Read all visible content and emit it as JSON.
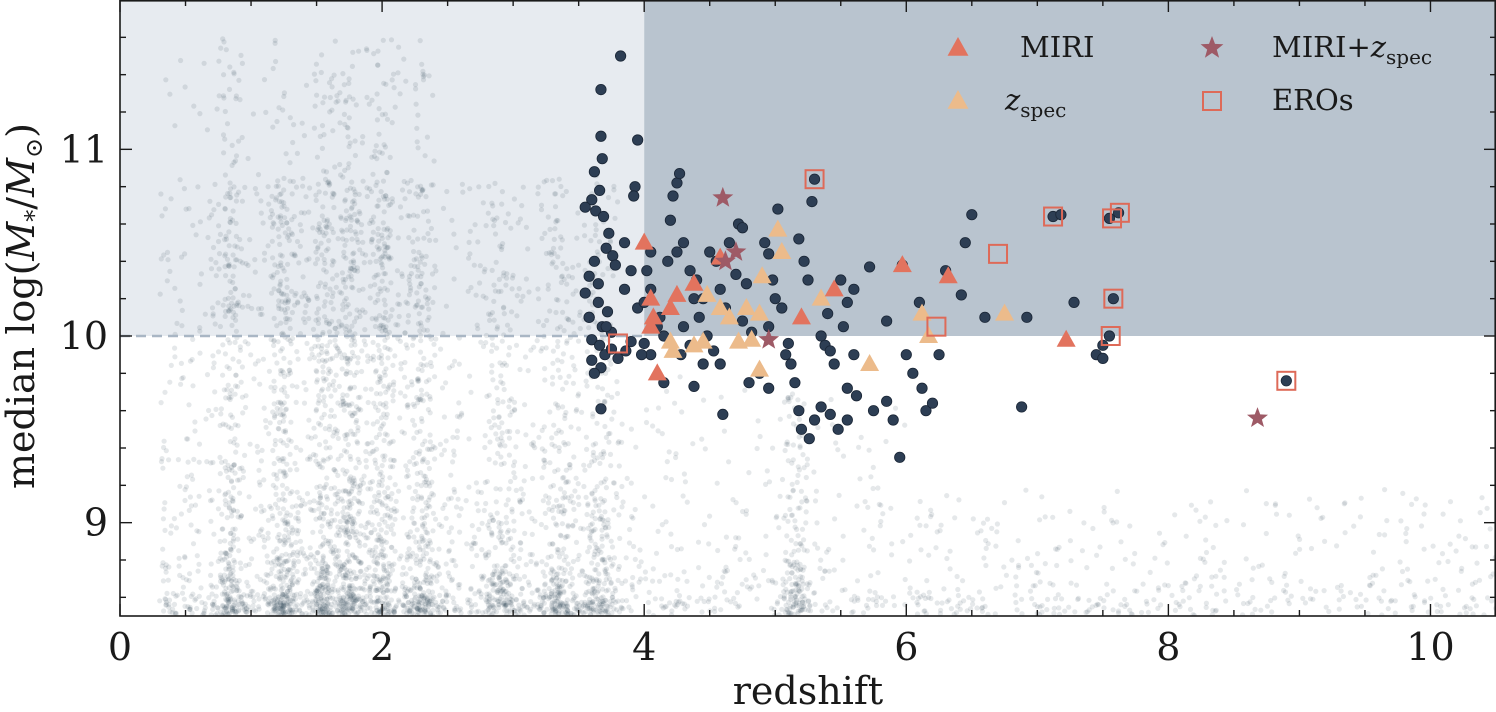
{
  "chart_data": {
    "type": "scatter",
    "xlabel": "redshift",
    "ylabel": {
      "prefix": "median log(",
      "var": "M",
      "sub1": "*",
      "mid": "/",
      "var2": "M",
      "sub2": "⊙",
      "suffix": ")"
    },
    "xlim": [
      0,
      10.5
    ],
    "ylim": [
      8.5,
      11.8
    ],
    "xticks": [
      0,
      2,
      4,
      6,
      8,
      10
    ],
    "yticks": [
      9,
      10,
      11
    ],
    "selection": {
      "z_min": 4,
      "logM_min": 10
    },
    "colors": {
      "background": "#1f2d44",
      "selected_region": "#b9c4cf",
      "lowz_region": "#e7ebf0",
      "dashed_line": "#a9b6c4",
      "sample": "#2d3e54",
      "miri": "#e2735e",
      "zspec": "#ecbb8b",
      "miri_zspec": "#9e5a66",
      "eros": "#de6a58"
    },
    "background_bands": [
      {
        "z": 0.85,
        "weight": 0.8
      },
      {
        "z": 1.25,
        "weight": 1.0
      },
      {
        "z": 1.55,
        "weight": 0.9
      },
      {
        "z": 1.75,
        "weight": 1.2
      },
      {
        "z": 2.0,
        "weight": 0.9
      },
      {
        "z": 2.3,
        "weight": 0.8
      },
      {
        "z": 2.9,
        "weight": 0.5
      },
      {
        "z": 3.35,
        "weight": 0.6
      },
      {
        "z": 3.65,
        "weight": 0.5
      },
      {
        "z": 5.15,
        "weight": 0.5
      }
    ],
    "legend": [
      {
        "key": "miri",
        "label": "MIRI"
      },
      {
        "key": "miri_zspec",
        "label": "MIRI+",
        "math": "z",
        "sub": "spec"
      },
      {
        "key": "zspec",
        "label": "",
        "math": "z",
        "sub": "spec"
      },
      {
        "key": "eros",
        "label": "EROs"
      }
    ],
    "series": [
      {
        "name": "sample",
        "marker": "circle",
        "points": [
          [
            3.82,
            11.5
          ],
          [
            3.67,
            11.32
          ],
          [
            3.67,
            11.07
          ],
          [
            3.68,
            10.95
          ],
          [
            3.62,
            10.88
          ],
          [
            3.66,
            10.78
          ],
          [
            3.6,
            10.73
          ],
          [
            3.55,
            10.69
          ],
          [
            3.63,
            10.67
          ],
          [
            3.69,
            10.64
          ],
          [
            3.93,
            10.8
          ],
          [
            3.95,
            11.05
          ],
          [
            3.92,
            10.75
          ],
          [
            3.73,
            10.55
          ],
          [
            3.71,
            10.47
          ],
          [
            3.76,
            10.43
          ],
          [
            3.62,
            10.4
          ],
          [
            3.85,
            10.5
          ],
          [
            3.78,
            10.38
          ],
          [
            3.9,
            10.35
          ],
          [
            3.58,
            10.32
          ],
          [
            3.65,
            10.28
          ],
          [
            3.85,
            10.25
          ],
          [
            3.55,
            10.23
          ],
          [
            3.65,
            10.18
          ],
          [
            3.72,
            10.13
          ],
          [
            3.58,
            10.1
          ],
          [
            3.68,
            10.05
          ],
          [
            3.75,
            10.02
          ],
          [
            3.6,
            9.98
          ],
          [
            3.66,
            9.95
          ],
          [
            3.7,
            9.9
          ],
          [
            3.6,
            9.87
          ],
          [
            3.67,
            9.83
          ],
          [
            3.62,
            9.8
          ],
          [
            3.8,
            9.88
          ],
          [
            3.75,
            9.93
          ],
          [
            3.86,
            9.92
          ],
          [
            3.9,
            9.97
          ],
          [
            3.67,
            9.61
          ],
          [
            3.95,
            10.15
          ],
          [
            4.05,
            10.45
          ],
          [
            4.02,
            10.35
          ],
          [
            4.05,
            10.25
          ],
          [
            4.0,
            10.18
          ],
          [
            4.1,
            10.05
          ],
          [
            4.15,
            10.0
          ],
          [
            4.0,
            9.96
          ],
          [
            4.05,
            9.9
          ],
          [
            4.12,
            10.1
          ],
          [
            4.18,
            10.4
          ],
          [
            4.25,
            10.45
          ],
          [
            4.3,
            10.5
          ],
          [
            4.22,
            10.75
          ],
          [
            4.25,
            10.82
          ],
          [
            4.27,
            10.87
          ],
          [
            4.35,
            10.35
          ],
          [
            4.4,
            10.3
          ],
          [
            4.38,
            10.2
          ],
          [
            4.42,
            10.1
          ],
          [
            4.3,
            10.05
          ],
          [
            4.35,
            9.95
          ],
          [
            4.28,
            9.9
          ],
          [
            4.45,
            9.85
          ],
          [
            4.5,
            10.45
          ],
          [
            4.55,
            10.4
          ],
          [
            4.58,
            10.25
          ],
          [
            4.62,
            10.15
          ],
          [
            4.48,
            10.0
          ],
          [
            4.53,
            9.92
          ],
          [
            4.58,
            9.85
          ],
          [
            4.6,
            9.58
          ],
          [
            4.65,
            10.5
          ],
          [
            4.72,
            10.6
          ],
          [
            4.7,
            10.33
          ],
          [
            4.78,
            10.28
          ],
          [
            4.75,
            10.08
          ],
          [
            4.82,
            10.02
          ],
          [
            4.8,
            9.75
          ],
          [
            4.88,
            9.8
          ],
          [
            4.92,
            10.5
          ],
          [
            4.95,
            10.44
          ],
          [
            5.02,
            10.68
          ],
          [
            4.98,
            10.3
          ],
          [
            5.0,
            10.2
          ],
          [
            4.95,
            10.05
          ],
          [
            5.08,
            9.9
          ],
          [
            5.12,
            9.85
          ],
          [
            5.15,
            9.75
          ],
          [
            5.18,
            10.52
          ],
          [
            5.22,
            10.4
          ],
          [
            5.25,
            10.3
          ],
          [
            5.28,
            10.72
          ],
          [
            5.3,
            10.84
          ],
          [
            5.35,
            10.0
          ],
          [
            5.38,
            9.95
          ],
          [
            5.42,
            9.92
          ],
          [
            5.45,
            9.85
          ],
          [
            5.18,
            9.6
          ],
          [
            5.2,
            9.5
          ],
          [
            5.26,
            9.45
          ],
          [
            5.3,
            9.55
          ],
          [
            5.35,
            9.62
          ],
          [
            5.42,
            9.58
          ],
          [
            5.48,
            9.5
          ],
          [
            5.55,
            9.55
          ],
          [
            5.5,
            10.3
          ],
          [
            5.55,
            10.18
          ],
          [
            5.6,
            10.25
          ],
          [
            5.72,
            10.37
          ],
          [
            5.52,
            10.05
          ],
          [
            5.55,
            9.72
          ],
          [
            5.62,
            9.68
          ],
          [
            5.75,
            9.6
          ],
          [
            5.85,
            9.65
          ],
          [
            5.9,
            9.55
          ],
          [
            5.95,
            9.35
          ],
          [
            5.97,
            10.38
          ],
          [
            5.85,
            10.08
          ],
          [
            6.0,
            9.9
          ],
          [
            6.05,
            9.8
          ],
          [
            6.15,
            9.6
          ],
          [
            6.12,
            9.72
          ],
          [
            6.2,
            9.64
          ],
          [
            6.25,
            9.9
          ],
          [
            6.1,
            10.18
          ],
          [
            6.3,
            10.35
          ],
          [
            6.45,
            10.5
          ],
          [
            6.5,
            10.65
          ],
          [
            6.42,
            10.22
          ],
          [
            6.6,
            10.1
          ],
          [
            6.88,
            9.62
          ],
          [
            6.92,
            10.1
          ],
          [
            7.12,
            10.64
          ],
          [
            7.18,
            10.65
          ],
          [
            7.28,
            10.18
          ],
          [
            7.45,
            9.9
          ],
          [
            7.5,
            9.95
          ],
          [
            7.5,
            9.88
          ],
          [
            7.55,
            10.63
          ],
          [
            7.58,
            10.2
          ],
          [
            7.55,
            10.0
          ],
          [
            7.62,
            10.66
          ],
          [
            8.9,
            9.76
          ],
          [
            3.58,
            10.1
          ],
          [
            3.71,
            10.05
          ],
          [
            4.45,
            10.2
          ],
          [
            4.95,
            9.72
          ],
          [
            5.05,
            10.15
          ],
          [
            5.4,
            10.12
          ],
          [
            4.15,
            9.75
          ],
          [
            4.38,
            9.73
          ],
          [
            5.6,
            9.9
          ],
          [
            4.2,
            10.62
          ],
          [
            3.98,
            9.9
          ],
          [
            4.75,
            10.58
          ],
          [
            5.1,
            9.96
          ]
        ]
      },
      {
        "name": "MIRI",
        "marker": "triangle",
        "points": [
          [
            4.0,
            10.5
          ],
          [
            4.05,
            10.2
          ],
          [
            4.07,
            10.1
          ],
          [
            4.05,
            10.05
          ],
          [
            4.1,
            9.8
          ],
          [
            4.2,
            10.15
          ],
          [
            4.25,
            10.22
          ],
          [
            4.38,
            10.28
          ],
          [
            4.58,
            10.42
          ],
          [
            5.2,
            10.1
          ],
          [
            5.45,
            10.25
          ],
          [
            5.97,
            10.38
          ],
          [
            6.32,
            10.32
          ],
          [
            7.22,
            9.98
          ]
        ]
      },
      {
        "name": "zspec",
        "marker": "triangle",
        "points": [
          [
            4.2,
            9.97
          ],
          [
            4.22,
            9.92
          ],
          [
            4.38,
            9.95
          ],
          [
            4.45,
            9.97
          ],
          [
            4.48,
            10.22
          ],
          [
            4.58,
            10.15
          ],
          [
            4.65,
            10.1
          ],
          [
            4.72,
            9.97
          ],
          [
            4.78,
            10.15
          ],
          [
            4.82,
            9.98
          ],
          [
            4.88,
            9.82
          ],
          [
            4.88,
            10.12
          ],
          [
            4.9,
            10.32
          ],
          [
            5.02,
            10.57
          ],
          [
            5.05,
            10.45
          ],
          [
            5.35,
            10.2
          ],
          [
            5.72,
            9.85
          ],
          [
            6.12,
            10.12
          ],
          [
            6.17,
            10.0
          ],
          [
            6.75,
            10.12
          ]
        ]
      },
      {
        "name": "MIRI+zspec",
        "marker": "star",
        "points": [
          [
            4.6,
            10.74
          ],
          [
            4.62,
            10.4
          ],
          [
            4.7,
            10.45
          ],
          [
            4.95,
            9.98
          ],
          [
            8.68,
            9.56
          ]
        ]
      },
      {
        "name": "EROs",
        "marker": "square-open",
        "points": [
          [
            3.8,
            9.96
          ],
          [
            5.3,
            10.84
          ],
          [
            6.23,
            10.05
          ],
          [
            6.7,
            10.44
          ],
          [
            7.12,
            10.64
          ],
          [
            7.57,
            10.63
          ],
          [
            7.63,
            10.66
          ],
          [
            7.58,
            10.2
          ],
          [
            7.56,
            10.0
          ],
          [
            8.9,
            9.76
          ]
        ]
      }
    ]
  }
}
